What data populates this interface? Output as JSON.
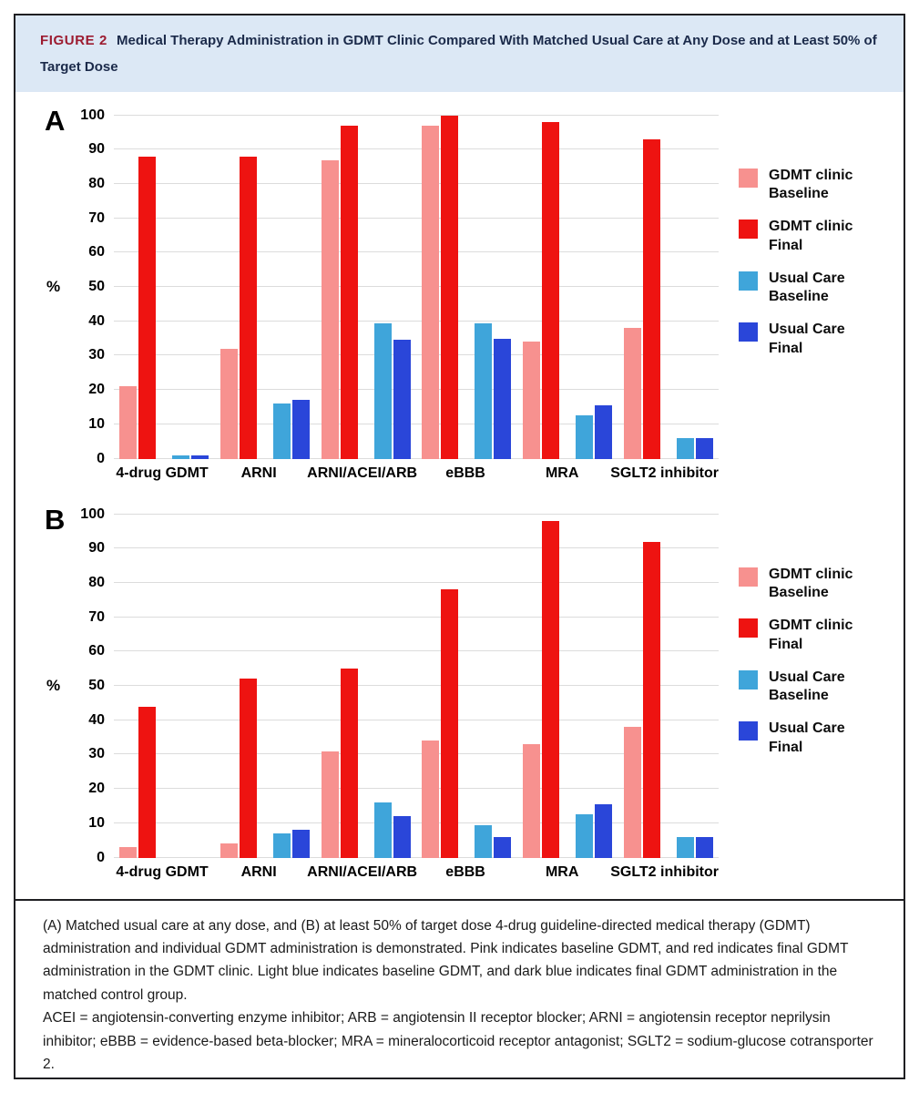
{
  "header": {
    "figure_label": "FIGURE 2",
    "title": "Medical Therapy Administration in GDMT Clinic Compared With Matched Usual Care at Any Dose and at Least 50% of Target Dose"
  },
  "colors": {
    "gdmt_baseline_pink": "#f7918f",
    "gdmt_final_red": "#ee1311",
    "usual_baseline_lightblue": "#3fa5da",
    "usual_final_darkblue": "#2a46d9",
    "header_band": "#dce8f5",
    "figure_label_red": "#9c1b30",
    "title_navy": "#1b2a4a"
  },
  "chart_data": [
    {
      "panel": "A",
      "type": "bar",
      "title": "",
      "xlabel": "",
      "ylabel": "%",
      "ylim": [
        0,
        100
      ],
      "yticks": [
        0,
        10,
        20,
        30,
        40,
        50,
        60,
        70,
        80,
        90,
        100
      ],
      "grid": true,
      "legend_position": "right",
      "categories": [
        "4-drug GDMT",
        "ARNI",
        "ARNI/ACEI/ARB",
        "eBBB",
        "MRA",
        "SGLT2 inhibitor"
      ],
      "series": [
        {
          "name": "GDMT clinic Baseline",
          "legend_lines": [
            "GDMT clinic",
            "Baseline"
          ],
          "color": "#f7918f",
          "values": [
            21,
            32,
            87,
            97,
            34,
            38
          ]
        },
        {
          "name": "GDMT clinic Final",
          "legend_lines": [
            "GDMT clinic",
            "Final"
          ],
          "color": "#ee1311",
          "values": [
            88,
            88,
            97,
            100,
            98,
            93
          ]
        },
        {
          "name": "Usual Care Baseline",
          "legend_lines": [
            "Usual Care",
            "Baseline"
          ],
          "color": "#3fa5da",
          "values": [
            1,
            16,
            39.5,
            39.5,
            12.5,
            6
          ]
        },
        {
          "name": "Usual Care Final",
          "legend_lines": [
            "Usual Care",
            "Final"
          ],
          "color": "#2a46d9",
          "values": [
            1,
            17,
            34.5,
            35,
            15.5,
            6
          ]
        }
      ]
    },
    {
      "panel": "B",
      "type": "bar",
      "title": "",
      "xlabel": "",
      "ylabel": "%",
      "ylim": [
        0,
        100
      ],
      "yticks": [
        0,
        10,
        20,
        30,
        40,
        50,
        60,
        70,
        80,
        90,
        100
      ],
      "grid": true,
      "legend_position": "right",
      "categories": [
        "4-drug GDMT",
        "ARNI",
        "ARNI/ACEI/ARB",
        "eBBB",
        "MRA",
        "SGLT2 inhibitor"
      ],
      "series": [
        {
          "name": "GDMT clinic Baseline",
          "legend_lines": [
            "GDMT clinic",
            "Baseline"
          ],
          "color": "#f7918f",
          "values": [
            3,
            4,
            31,
            34,
            33,
            38
          ]
        },
        {
          "name": "GDMT clinic Final",
          "legend_lines": [
            "GDMT clinic",
            "Final"
          ],
          "color": "#ee1311",
          "values": [
            44,
            52,
            55,
            78,
            98,
            92
          ]
        },
        {
          "name": "Usual Care Baseline",
          "legend_lines": [
            "Usual Care",
            "Baseline"
          ],
          "color": "#3fa5da",
          "values": [
            0,
            7,
            16,
            9.5,
            12.5,
            6
          ]
        },
        {
          "name": "Usual Care Final",
          "legend_lines": [
            "Usual Care",
            "Final"
          ],
          "color": "#2a46d9",
          "values": [
            0,
            8,
            12,
            6,
            15.5,
            6
          ]
        }
      ]
    }
  ],
  "caption": {
    "paragraph1": "(A) Matched usual care at any dose, and (B) at least 50% of target dose 4-drug guideline-directed medical therapy (GDMT) administration and individual GDMT administration is demonstrated. Pink indicates baseline GDMT, and red indicates final GDMT administration in the GDMT clinic. Light blue indicates baseline GDMT, and dark blue indicates final GDMT administration in the matched control group.",
    "paragraph2": "ACEI = angiotensin-converting enzyme inhibitor; ARB = angiotensin II receptor blocker; ARNI = angiotensin receptor neprilysin inhibitor; eBBB = evidence-based beta-blocker; MRA = mineralocorticoid receptor antagonist; SGLT2 = sodium-glucose cotransporter 2."
  }
}
